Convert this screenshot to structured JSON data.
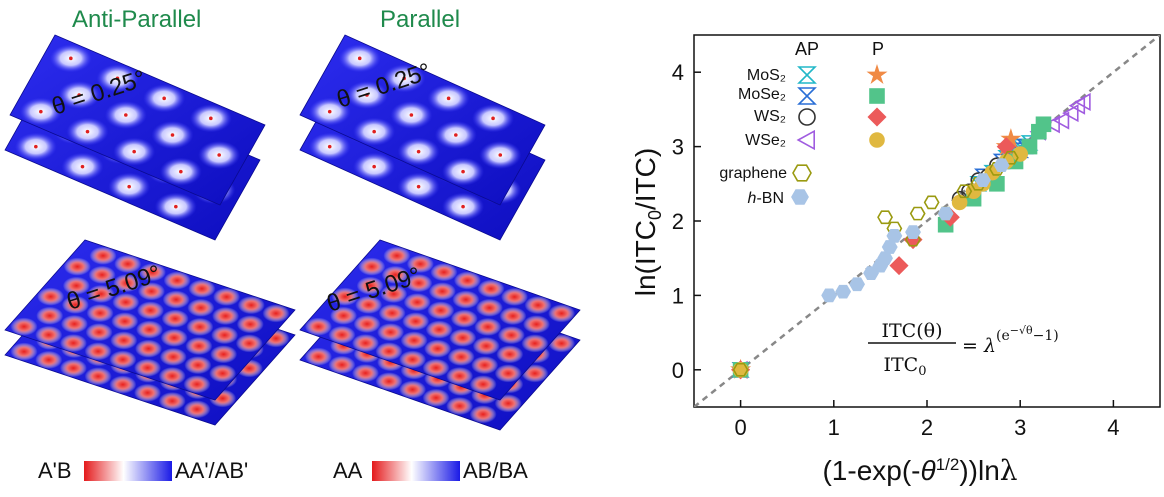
{
  "left_panel": {
    "headers": {
      "anti_parallel": "Anti-Parallel",
      "parallel": "Parallel"
    },
    "angle_small": "θ = 0.25°",
    "angle_large": "θ = 5.09°",
    "colorbar_ap": {
      "left": "A'B",
      "right": "AA'/AB'"
    },
    "colorbar_p": {
      "left": "AA",
      "right": "AB/BA"
    },
    "colors": {
      "stacking_low": "#e41a1c",
      "mid": "#ffffff",
      "stacking_high": "#1a1ae6"
    }
  },
  "chart_data": {
    "type": "scatter",
    "xlabel": "(1-exp(-θ1/2))lnλ",
    "ylabel": "ln(ITC0/ITC)",
    "xlim": [
      -0.5,
      4.5
    ],
    "ylim": [
      -0.5,
      4.5
    ],
    "xticks": [
      "0",
      "1",
      "2",
      "3",
      "4"
    ],
    "yticks": [
      "0",
      "1",
      "2",
      "3",
      "4"
    ],
    "grid": false,
    "reference_line": {
      "style": "dashed",
      "color": "#888888",
      "x": [
        -0.5,
        4.5
      ],
      "y": [
        -0.5,
        4.5
      ]
    },
    "equation": {
      "lhs_num": "ITC(θ)",
      "lhs_den": "ITC0",
      "rhs": "= λ(e−√θ−1)"
    },
    "legend": {
      "placement": "top-left",
      "col_headers": [
        "AP",
        "P"
      ],
      "rows": [
        "MoS₂",
        "MoSe₂",
        "WS₂",
        "WSe₂"
      ],
      "graphene": "graphene",
      "hbn_italic": "h",
      "hbn_rest": "-BN"
    },
    "series": [
      {
        "name": "MoS₂ AP",
        "marker": "hourglass",
        "color": "#22b8c8",
        "filled": false,
        "x": [
          0,
          2.55,
          2.7,
          2.85,
          2.95,
          3.0,
          3.1
        ],
        "y": [
          0,
          2.5,
          2.65,
          2.85,
          3.0,
          3.0,
          3.05
        ]
      },
      {
        "name": "MoSe₂ AP",
        "marker": "hourglass",
        "color": "#2a6fd6",
        "filled": false,
        "x": [
          0,
          2.6,
          2.8,
          2.9,
          3.0,
          3.05
        ],
        "y": [
          0,
          2.6,
          2.8,
          2.9,
          2.95,
          3.0
        ]
      },
      {
        "name": "WS₂ AP",
        "marker": "circle",
        "color": "#333333",
        "filled": false,
        "x": [
          0,
          2.35,
          2.45,
          2.55,
          2.65,
          2.75
        ],
        "y": [
          0,
          2.3,
          2.4,
          2.55,
          2.6,
          2.75
        ]
      },
      {
        "name": "WSe₂ AP",
        "marker": "triangle-left",
        "color": "#a05ce0",
        "filled": false,
        "x": [
          0,
          3.2,
          3.35,
          3.45,
          3.55,
          3.62,
          3.68
        ],
        "y": [
          0,
          3.2,
          3.3,
          3.35,
          3.45,
          3.55,
          3.6
        ]
      },
      {
        "name": "MoS₂ P",
        "marker": "star",
        "color": "#f08a45",
        "filled": true,
        "x": [
          0,
          2.85,
          2.9
        ],
        "y": [
          0,
          3.0,
          3.1
        ]
      },
      {
        "name": "MoSe₂ P",
        "marker": "square",
        "color": "#52c48a",
        "filled": true,
        "x": [
          0,
          2.2,
          2.5,
          2.75,
          2.95,
          3.1,
          3.2,
          3.25
        ],
        "y": [
          0,
          1.95,
          2.3,
          2.5,
          2.8,
          3.0,
          3.2,
          3.3
        ]
      },
      {
        "name": "WS₂ P",
        "marker": "diamond",
        "color": "#ec5a5a",
        "filled": true,
        "x": [
          0,
          1.7,
          1.85,
          2.25,
          2.85
        ],
        "y": [
          0,
          1.4,
          1.75,
          2.05,
          3.0
        ]
      },
      {
        "name": "WSe₂ P",
        "marker": "circle",
        "color": "#e0b840",
        "filled": true,
        "x": [
          0,
          2.35,
          2.5,
          2.6,
          2.7,
          2.85,
          3.0
        ],
        "y": [
          0,
          2.25,
          2.4,
          2.5,
          2.65,
          2.8,
          2.9
        ]
      },
      {
        "name": "graphene",
        "marker": "hexagon",
        "color": "#9a9a10",
        "filled": false,
        "x": [
          0,
          1.55,
          1.65,
          1.85,
          1.9,
          2.05,
          2.2,
          2.4,
          2.55,
          2.75,
          2.9
        ],
        "y": [
          0,
          2.05,
          1.9,
          1.75,
          2.1,
          2.25,
          2.1,
          2.4,
          2.5,
          2.7,
          2.85
        ]
      },
      {
        "name": "h-BN",
        "marker": "hexagon",
        "color": "#a8c4e6",
        "filled": true,
        "x": [
          0.95,
          1.1,
          1.25,
          1.4,
          1.5,
          1.55,
          1.6,
          1.65,
          1.85,
          2.2,
          2.6,
          2.8
        ],
        "y": [
          1.0,
          1.05,
          1.15,
          1.3,
          1.4,
          1.5,
          1.65,
          1.8,
          1.85,
          2.1,
          2.55,
          2.75
        ]
      }
    ]
  }
}
